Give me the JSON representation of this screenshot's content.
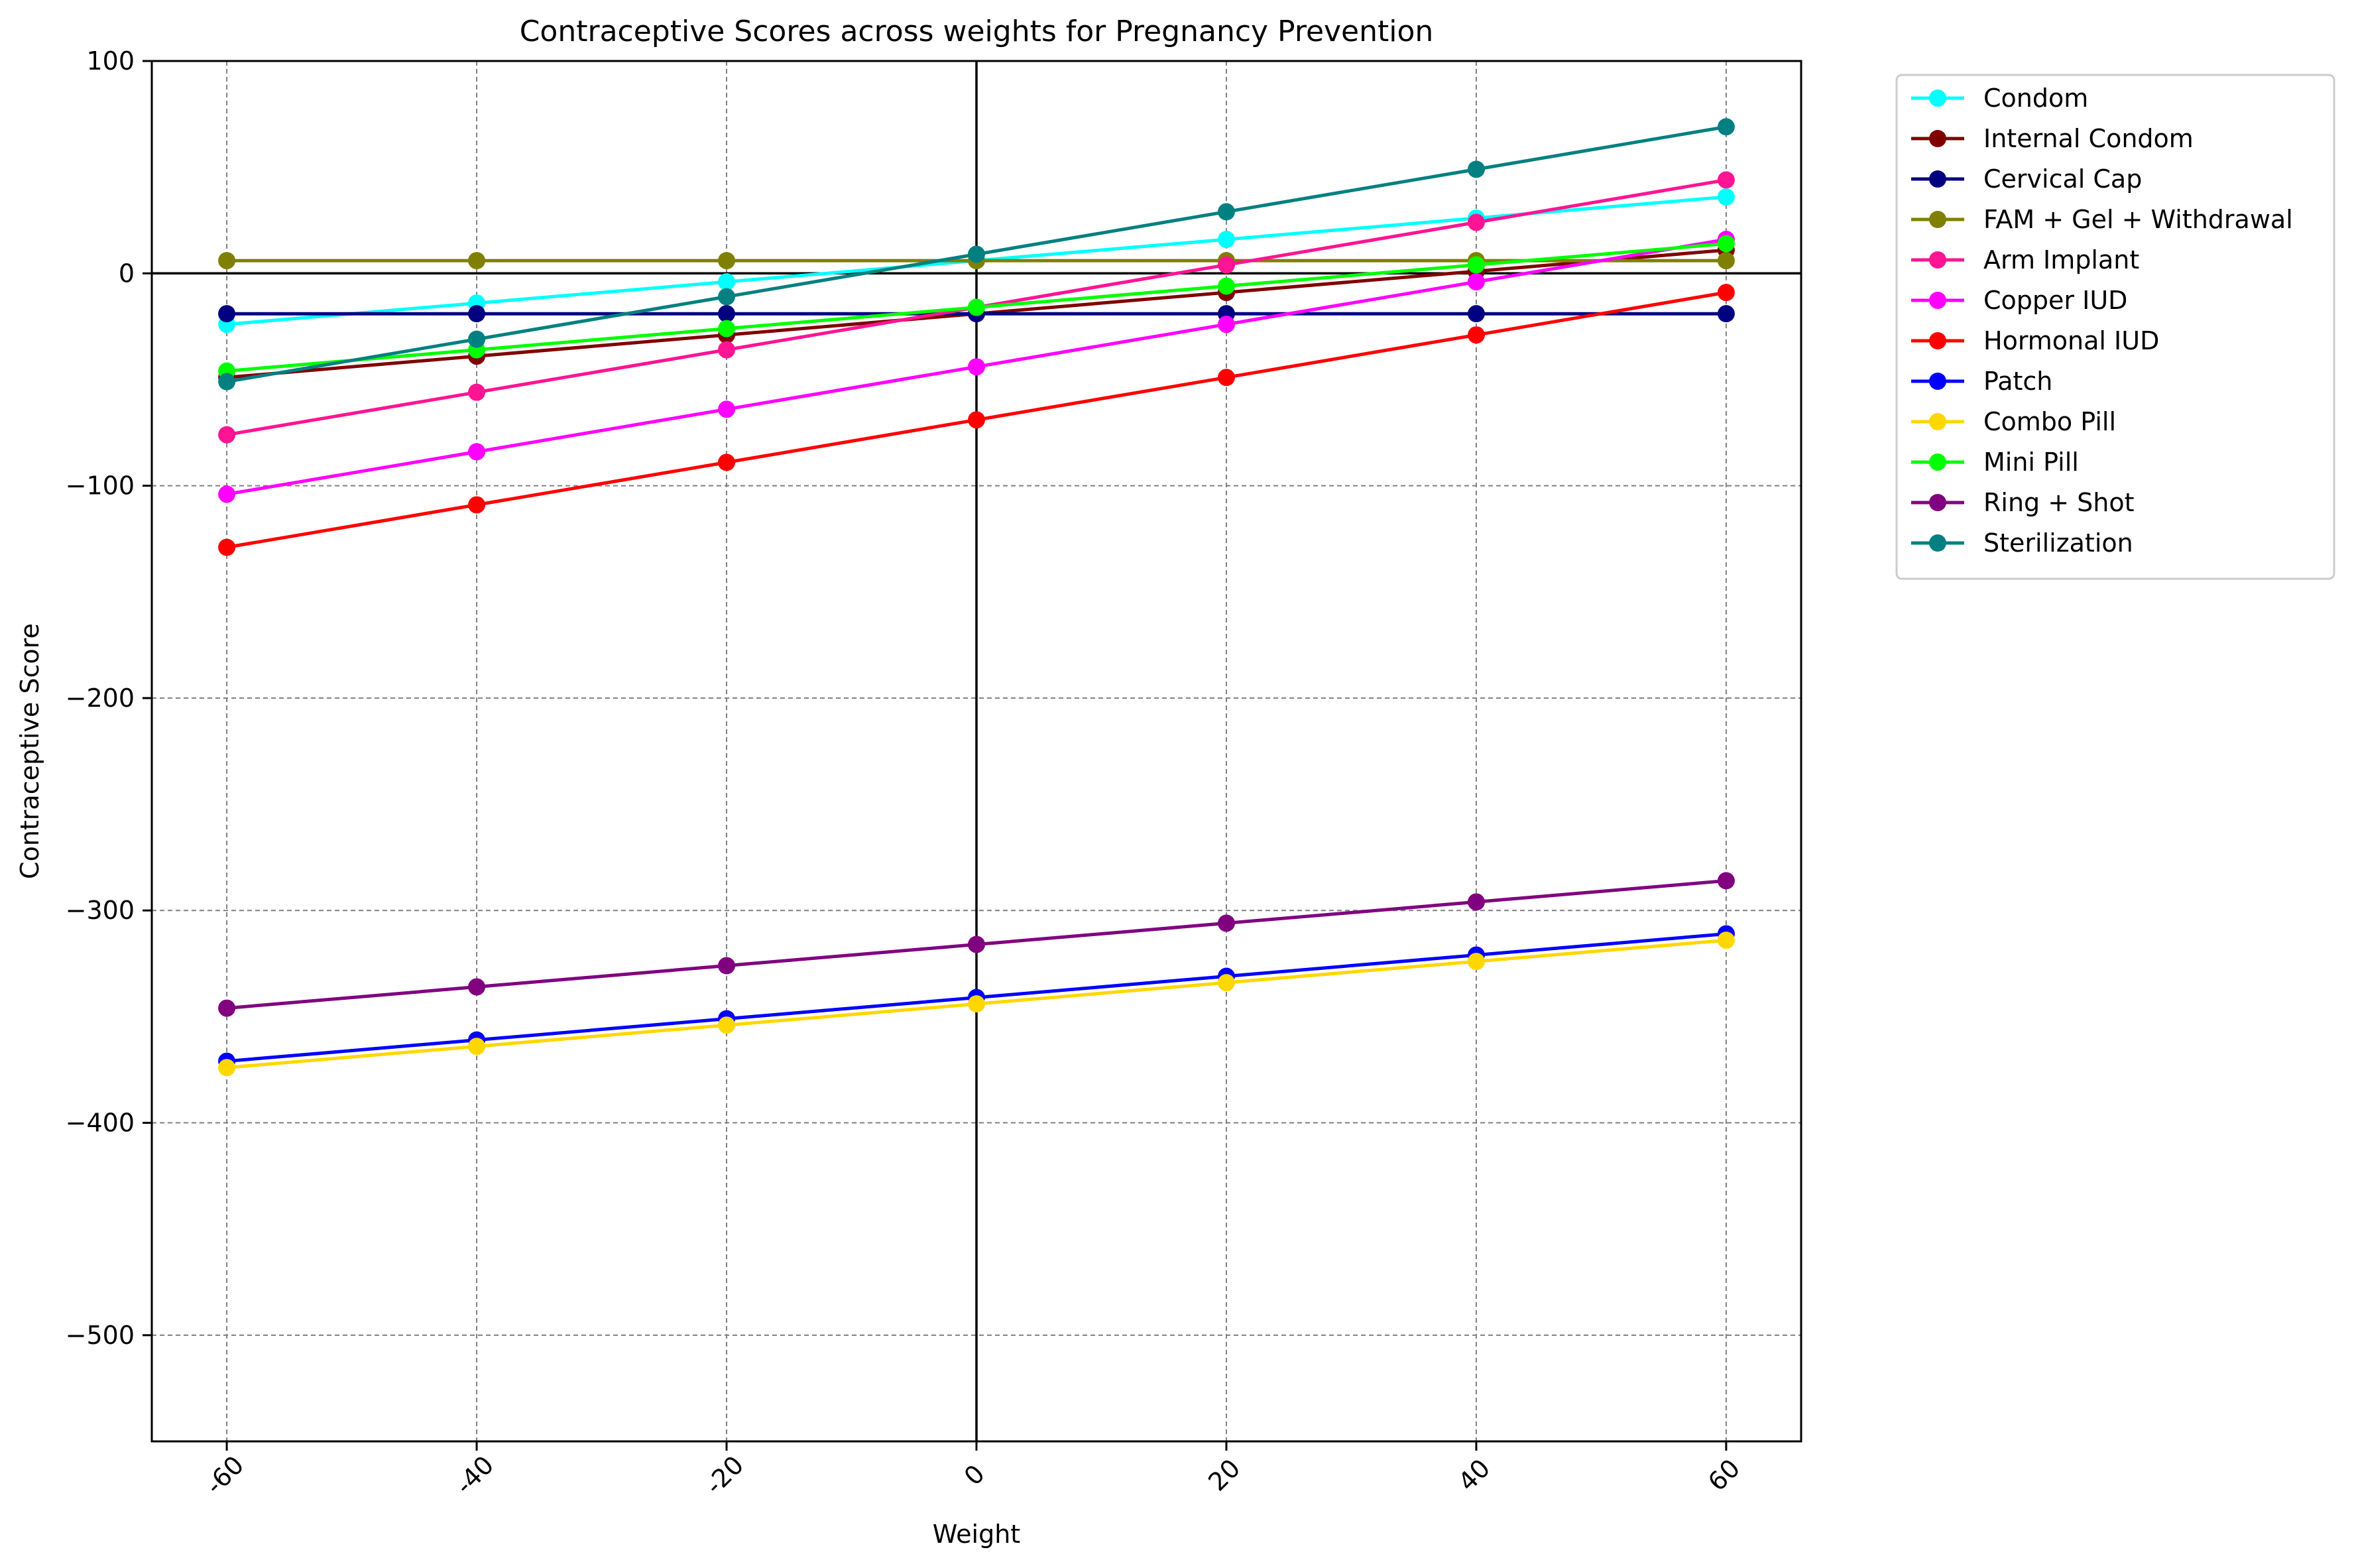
{
  "chart_data": {
    "type": "line",
    "title": "Contraceptive Scores across weights for Pregnancy Prevention",
    "xlabel": "Weight",
    "ylabel": "Contraceptive Score",
    "x": [
      -60,
      -40,
      -20,
      0,
      20,
      40,
      60
    ],
    "x_tick_labels": [
      "-60",
      "-40",
      "-20",
      "0",
      "20",
      "40",
      "60"
    ],
    "y_ticks": [
      100,
      0,
      -100,
      -200,
      -300,
      -400,
      -500
    ],
    "y_tick_labels": [
      "100",
      "0",
      "−100",
      "−200",
      "−300",
      "−400",
      "−500"
    ],
    "xlim": [
      -66,
      66
    ],
    "ylim": [
      -550,
      100
    ],
    "grid": true,
    "legend_position": "outside upper right",
    "series": [
      {
        "name": "Condom",
        "color": "#00ffff",
        "values": [
          -24,
          -14,
          -4,
          6,
          16,
          26,
          36
        ]
      },
      {
        "name": "Internal Condom",
        "color": "#800000",
        "values": [
          -49,
          -39,
          -29,
          -19,
          -9,
          1,
          11
        ]
      },
      {
        "name": "Cervical Cap",
        "color": "#000080",
        "values": [
          -19,
          -19,
          -19,
          -19,
          -19,
          -19,
          -19
        ]
      },
      {
        "name": "FAM + Gel + Withdrawal",
        "color": "#808000",
        "values": [
          6,
          6,
          6,
          6,
          6,
          6,
          6
        ]
      },
      {
        "name": "Arm Implant",
        "color": "#ff1493",
        "values": [
          -76,
          -56,
          -36,
          -16,
          4,
          24,
          44
        ]
      },
      {
        "name": "Copper IUD",
        "color": "#ff00ff",
        "values": [
          -104,
          -84,
          -64,
          -44,
          -24,
          -4,
          16
        ]
      },
      {
        "name": "Hormonal IUD",
        "color": "#ff0000",
        "values": [
          -129,
          -109,
          -89,
          -69,
          -49,
          -29,
          -9
        ]
      },
      {
        "name": "Patch",
        "color": "#0000ff",
        "values": [
          -371,
          -361,
          -351,
          -341,
          -331,
          -321,
          -311
        ]
      },
      {
        "name": "Combo Pill",
        "color": "#ffd700",
        "values": [
          -374,
          -364,
          -354,
          -344,
          -334,
          -324,
          -314
        ]
      },
      {
        "name": "Mini Pill",
        "color": "#00ff00",
        "values": [
          -46,
          -36,
          -26,
          -16,
          -6,
          4,
          14
        ]
      },
      {
        "name": "Ring + Shot",
        "color": "#800080",
        "values": [
          -346,
          -336,
          -326,
          -316,
          -306,
          -296,
          -286
        ]
      },
      {
        "name": "Sterilization",
        "color": "#008080",
        "values": [
          -51,
          -31,
          -11,
          9,
          29,
          49,
          69
        ]
      }
    ]
  }
}
